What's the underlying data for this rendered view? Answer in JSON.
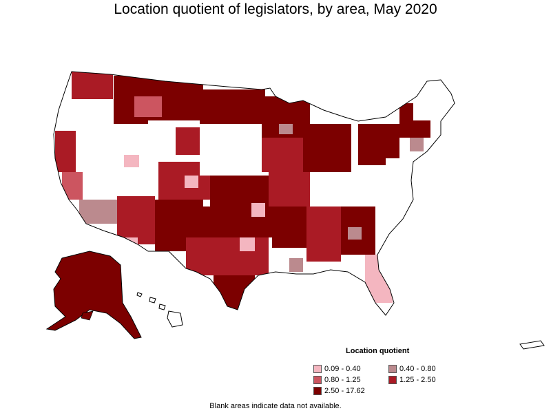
{
  "title": "Location quotient of legislators, by area, May 2020",
  "legend": {
    "title": "Location quotient",
    "items": [
      {
        "label": "0.09 - 0.40",
        "color": "#f4b6c0"
      },
      {
        "label": "0.40 - 0.80",
        "color": "#bb8a8e"
      },
      {
        "label": "0.80 - 1.25",
        "color": "#cc5560"
      },
      {
        "label": "1.25 - 2.50",
        "color": "#aa1b25"
      },
      {
        "label": "2.50 - 17.62",
        "color": "#7c0000"
      }
    ]
  },
  "footnote": "Blank areas indicate data not available."
}
